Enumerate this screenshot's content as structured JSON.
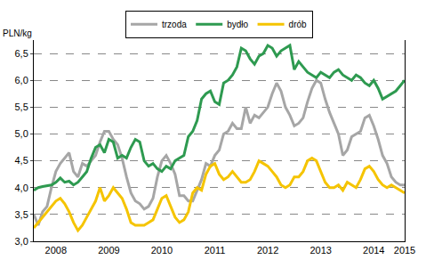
{
  "chart_data": {
    "type": "line",
    "y_label": "PLN/kg",
    "categories": [
      null,
      null,
      null,
      null,
      null,
      "2008",
      null,
      null,
      null,
      null,
      null,
      null,
      null,
      null,
      null,
      null,
      null,
      "2009",
      null,
      null,
      null,
      null,
      null,
      null,
      null,
      null,
      null,
      null,
      null,
      "2010",
      null,
      null,
      null,
      null,
      null,
      null,
      null,
      null,
      null,
      null,
      null,
      "2011",
      null,
      null,
      null,
      null,
      null,
      null,
      null,
      null,
      null,
      null,
      null,
      "2012",
      null,
      null,
      null,
      null,
      null,
      null,
      null,
      null,
      null,
      null,
      null,
      "2013",
      null,
      null,
      null,
      null,
      null,
      null,
      null,
      null,
      null,
      null,
      null,
      "2014",
      null,
      null,
      null,
      null,
      null,
      null,
      "2015"
    ],
    "series": [
      {
        "name": "trzoda",
        "color": "#a6a6a6",
        "values": [
          3.5,
          3.3,
          3.55,
          3.65,
          4.0,
          4.3,
          4.45,
          4.55,
          4.65,
          4.3,
          4.2,
          4.45,
          4.4,
          4.5,
          4.6,
          4.85,
          5.05,
          5.05,
          4.9,
          4.8,
          4.55,
          4.2,
          3.9,
          3.75,
          3.7,
          3.6,
          3.65,
          3.8,
          4.2,
          4.5,
          4.6,
          4.45,
          4.25,
          3.85,
          3.85,
          3.75,
          3.75,
          3.95,
          4.15,
          4.45,
          4.4,
          4.6,
          4.7,
          5.0,
          5.05,
          5.2,
          5.1,
          5.1,
          5.5,
          5.2,
          5.35,
          5.3,
          5.4,
          5.5,
          5.75,
          5.95,
          5.8,
          5.5,
          5.35,
          5.15,
          5.2,
          5.3,
          5.6,
          5.85,
          6.0,
          5.95,
          5.65,
          5.4,
          5.2,
          5.0,
          4.6,
          4.7,
          4.95,
          5.0,
          5.05,
          5.3,
          5.35,
          5.15,
          4.9,
          4.6,
          4.45,
          4.2,
          4.1,
          4.05,
          4.05
        ]
      },
      {
        "name": "bydło",
        "color": "#2e9a50",
        "values": [
          3.95,
          4.0,
          4.02,
          4.03,
          4.05,
          4.1,
          4.18,
          4.1,
          4.12,
          4.05,
          4.1,
          4.2,
          4.3,
          4.55,
          4.75,
          4.8,
          4.65,
          4.9,
          4.85,
          4.55,
          4.6,
          4.55,
          4.75,
          4.9,
          4.85,
          4.5,
          4.4,
          4.45,
          4.35,
          4.3,
          4.4,
          4.35,
          4.5,
          4.55,
          4.6,
          4.95,
          5.05,
          5.25,
          5.65,
          5.75,
          5.8,
          5.6,
          5.55,
          5.95,
          6.0,
          6.1,
          6.25,
          6.6,
          6.55,
          6.4,
          6.3,
          6.45,
          6.5,
          6.65,
          6.6,
          6.45,
          6.55,
          6.6,
          6.65,
          6.2,
          6.35,
          6.25,
          6.15,
          6.1,
          6.05,
          6.15,
          6.1,
          6.05,
          6.15,
          6.2,
          6.1,
          6.05,
          6.0,
          6.1,
          6.05,
          5.95,
          5.9,
          6.0,
          5.85,
          5.65,
          5.7,
          5.75,
          5.8,
          5.9,
          6.0
        ]
      },
      {
        "name": "drób",
        "color": "#f5c400",
        "values": [
          3.25,
          3.35,
          3.45,
          3.55,
          3.65,
          3.75,
          3.8,
          3.7,
          3.55,
          3.35,
          3.2,
          3.3,
          3.45,
          3.6,
          3.75,
          4.0,
          3.75,
          3.85,
          4.0,
          3.9,
          3.8,
          3.6,
          3.35,
          3.3,
          3.3,
          3.3,
          3.35,
          3.4,
          3.6,
          3.8,
          3.85,
          3.65,
          3.45,
          3.35,
          3.4,
          3.55,
          3.9,
          4.0,
          3.95,
          4.25,
          4.4,
          4.45,
          4.25,
          4.15,
          4.2,
          4.3,
          4.2,
          4.1,
          4.1,
          4.15,
          4.3,
          4.5,
          4.45,
          4.4,
          4.3,
          4.2,
          4.05,
          4.0,
          4.05,
          4.2,
          4.2,
          4.3,
          4.5,
          4.55,
          4.5,
          4.3,
          4.1,
          4.0,
          4.0,
          4.05,
          3.95,
          4.1,
          4.05,
          4.0,
          4.15,
          4.35,
          4.4,
          4.3,
          4.15,
          4.05,
          4.0,
          4.05,
          4.0,
          3.95,
          3.9
        ]
      }
    ],
    "ylim": [
      3.0,
      6.75
    ],
    "yticks": [
      {
        "value": 3.0,
        "label": "3,0"
      },
      {
        "value": 3.5,
        "label": "3,5"
      },
      {
        "value": 4.0,
        "label": "4,0"
      },
      {
        "value": 4.5,
        "label": "4,5"
      },
      {
        "value": 5.0,
        "label": "5,0"
      },
      {
        "value": 5.5,
        "label": "5,5"
      },
      {
        "value": 6.0,
        "label": "6,0"
      },
      {
        "value": 6.5,
        "label": "6,5"
      }
    ],
    "grid": true,
    "legend": "top"
  }
}
